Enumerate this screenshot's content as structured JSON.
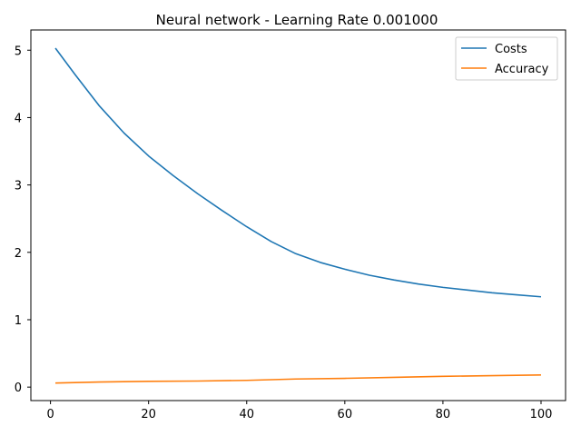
{
  "chart_data": {
    "type": "line",
    "title": "Neural network - Learning Rate 0.001000",
    "xlabel": "",
    "ylabel": "",
    "xlim": [
      -4,
      105
    ],
    "ylim": [
      -0.2,
      5.3
    ],
    "xticks": [
      0,
      20,
      40,
      60,
      80,
      100
    ],
    "yticks": [
      0,
      1,
      2,
      3,
      4,
      5
    ],
    "grid": false,
    "legend_position": "top-right",
    "series": [
      {
        "name": "Costs",
        "color": "#1f77b4",
        "x": [
          1,
          5,
          10,
          15,
          20,
          25,
          30,
          35,
          40,
          45,
          50,
          55,
          60,
          65,
          70,
          75,
          80,
          85,
          90,
          95,
          100
        ],
        "y": [
          5.03,
          4.64,
          4.17,
          3.77,
          3.43,
          3.14,
          2.87,
          2.62,
          2.38,
          2.16,
          1.98,
          1.85,
          1.75,
          1.66,
          1.59,
          1.53,
          1.48,
          1.44,
          1.4,
          1.37,
          1.34
        ]
      },
      {
        "name": "Accuracy",
        "color": "#ff7f0e",
        "x": [
          1,
          10,
          20,
          30,
          40,
          50,
          60,
          70,
          80,
          90,
          100
        ],
        "y": [
          0.06,
          0.075,
          0.085,
          0.09,
          0.1,
          0.12,
          0.13,
          0.145,
          0.16,
          0.17,
          0.18
        ]
      }
    ]
  }
}
